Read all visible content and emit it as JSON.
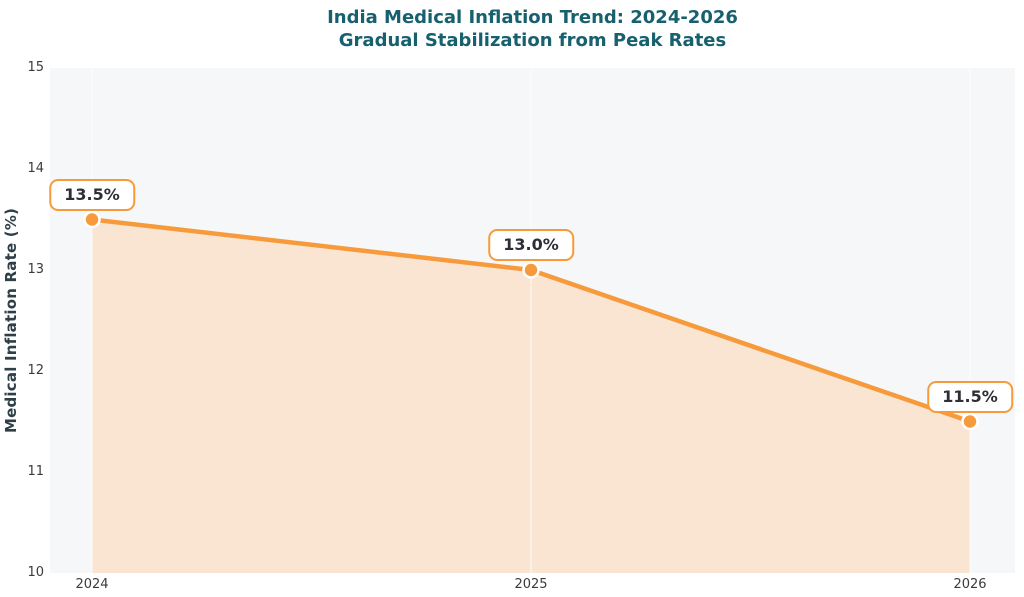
{
  "title": {
    "line1": "India Medical Inflation Trend: 2024-2026",
    "line2": "Gradual Stabilization from Peak Rates"
  },
  "chart_data": {
    "type": "area",
    "title": "India Medical Inflation Trend: 2024-2026 — Gradual Stabilization from Peak Rates",
    "categories": [
      "2024",
      "2025",
      "2026"
    ],
    "x": [
      2024,
      2025,
      2026
    ],
    "series": [
      {
        "name": "Medical Inflation Rate",
        "values": [
          13.5,
          13.0,
          11.5
        ]
      }
    ],
    "point_labels": [
      "13.5%",
      "13.0%",
      "11.5%"
    ],
    "xlabel": "",
    "ylabel": "Medical Inflation Rate (%)",
    "ylim": [
      10,
      15
    ],
    "yticks": [
      "10",
      "11",
      "12",
      "13",
      "14",
      "15"
    ],
    "grid": "vertical-only",
    "legend": "none",
    "colors": {
      "line": "#F79A3B",
      "marker": "#F79A3B",
      "marker_edge": "#FFFFFF",
      "area_fill": "#FAE5D2",
      "plot_background": "#F6F7F9",
      "title_text": "#17606E",
      "axis_label_text": "#2E3F47",
      "tick_text": "#3B3B3B",
      "label_text": "#2E2E36",
      "label_background": "#FFFFFF",
      "label_border": "#F79A3B",
      "gridline": "#FFFFFF"
    }
  }
}
